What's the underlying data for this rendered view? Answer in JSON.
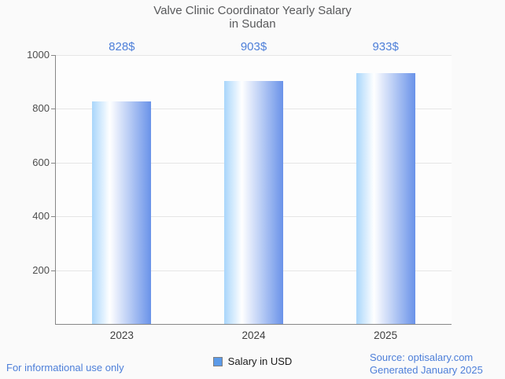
{
  "title": {
    "line1": "Valve Clinic Coordinator Yearly Salary",
    "line2": "in Sudan"
  },
  "chart_data": {
    "type": "bar",
    "title": "Valve Clinic Coordinator Yearly Salary in Sudan",
    "categories": [
      "2023",
      "2024",
      "2025"
    ],
    "values": [
      828,
      903,
      933
    ],
    "value_labels": [
      "828$",
      "903$",
      "933$"
    ],
    "series_name": "Salary in USD",
    "xlabel": "",
    "ylabel": "",
    "ylim": [
      0,
      1000
    ],
    "yticks": [
      200,
      400,
      600,
      800,
      1000
    ],
    "grid": true,
    "legend_position": "bottom"
  },
  "legend": {
    "label": "Salary in USD"
  },
  "footer": {
    "left": "For informational use only",
    "source": "Source: optisalary.com",
    "generated": "Generated January 2025"
  },
  "colors": {
    "accent_blue": "#4d7fd9",
    "bar_gradient_left": "#a9d6fb",
    "bar_gradient_mid": "#ffffff",
    "bar_gradient_right": "#6a93e9",
    "legend_swatch": "#5b9ae8",
    "axis": "#878787",
    "gridline": "#e6e6e6",
    "title_text": "#58595b"
  }
}
